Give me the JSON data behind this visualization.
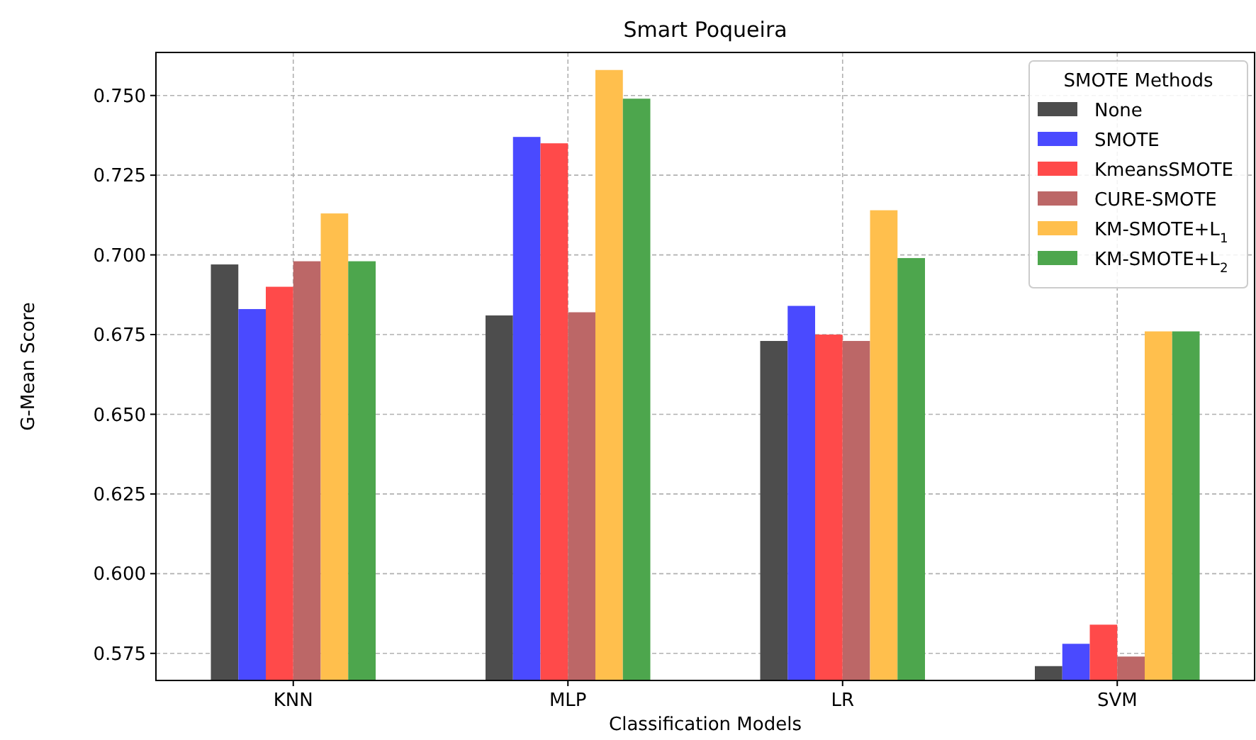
{
  "chart_data": {
    "type": "bar",
    "title": "Smart Poqueira",
    "xlabel": "Classification Models",
    "ylabel": "G-Mean Score",
    "legend_title": "SMOTE Methods",
    "categories": [
      "KNN",
      "MLP",
      "LR",
      "SVM"
    ],
    "series": [
      {
        "name": "None",
        "color": "#4d4d4d",
        "values": [
          0.697,
          0.681,
          0.673,
          0.571
        ]
      },
      {
        "name": "SMOTE",
        "color": "#4a4aff",
        "values": [
          0.683,
          0.737,
          0.684,
          0.578
        ]
      },
      {
        "name": "KmeansSMOTE",
        "color": "#ff4a4a",
        "values": [
          0.69,
          0.735,
          0.675,
          0.584
        ]
      },
      {
        "name": "CURE-SMOTE",
        "color": "#bc6767",
        "values": [
          0.698,
          0.682,
          0.673,
          0.574
        ]
      },
      {
        "name": "KM-SMOTE+L$_{1}$",
        "color": "#ffbf4d",
        "values": [
          0.713,
          0.758,
          0.714,
          0.676
        ]
      },
      {
        "name": "KM-SMOTE+L$_{2}$",
        "color": "#4da64d",
        "values": [
          0.698,
          0.749,
          0.699,
          0.676
        ]
      }
    ],
    "ylim": [
      0.5665,
      0.7635
    ],
    "yticks": [
      0.575,
      {
        "value": 0.6,
        "label": "0.600"
      },
      0.625,
      {
        "value": 0.65,
        "label": "0.650"
      },
      0.675,
      {
        "value": 0.7,
        "label": "0.700"
      },
      0.725,
      {
        "value": 0.75,
        "label": "0.750"
      }
    ],
    "grid": true,
    "legend": "top right"
  }
}
